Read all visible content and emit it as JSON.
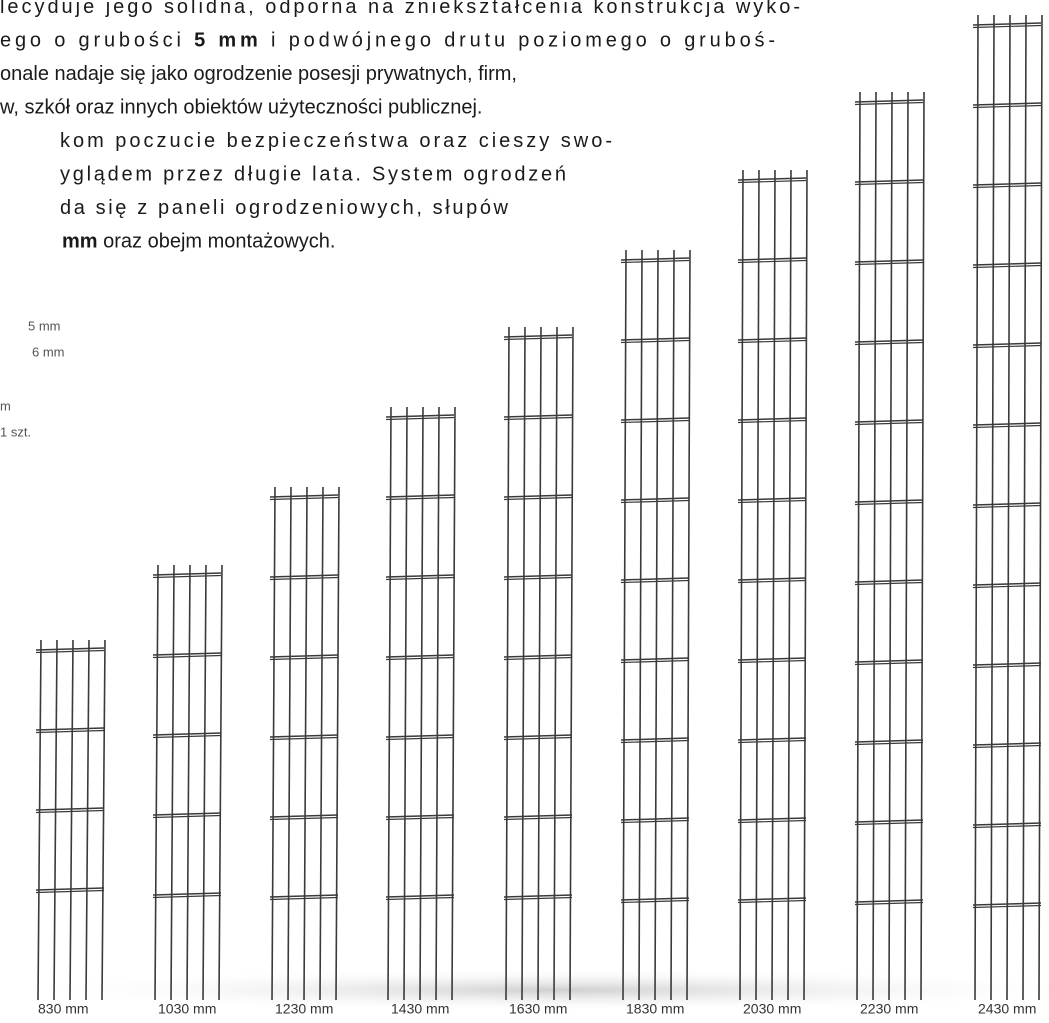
{
  "paragraph": {
    "lines": [
      [
        {
          "text": "lecyduje jego solidna, odporna na zniekształcenia konstrukcja wyko-"
        }
      ],
      [
        {
          "text": "ego o grubości "
        },
        {
          "text": "5 mm",
          "bold": true
        },
        {
          "text": " i podwójnego drutu poziomego o gruboś-"
        }
      ],
      [
        {
          "text": "onale nadaje się jako ogrodzenie posesji prywatnych, firm,"
        }
      ],
      [
        {
          "text": "w, szkół oraz innych obiektów użyteczności publicznej."
        }
      ],
      [
        {
          "text": "kom poczucie bezpieczeństwa oraz cieszy swo-"
        }
      ],
      [
        {
          "text": "yglądem przez długie lata. System ogrodzeń"
        }
      ],
      [
        {
          "text": "da się z paneli ogrodzeniowych, słupów"
        }
      ],
      [
        {
          "text": "mm",
          "bold": true
        },
        {
          "text": " oraz obejm montażowych."
        }
      ]
    ]
  },
  "specs": [
    "5 mm",
    "6 mm",
    "m",
    "1 szt."
  ],
  "panels": [
    {
      "label": "830 mm"
    },
    {
      "label": "1030 mm"
    },
    {
      "label": "1230 mm"
    },
    {
      "label": "1430 mm"
    },
    {
      "label": "1630 mm"
    },
    {
      "label": "1830 mm"
    },
    {
      "label": "2030 mm"
    },
    {
      "label": "2230 mm"
    },
    {
      "label": "2430 mm"
    }
  ]
}
